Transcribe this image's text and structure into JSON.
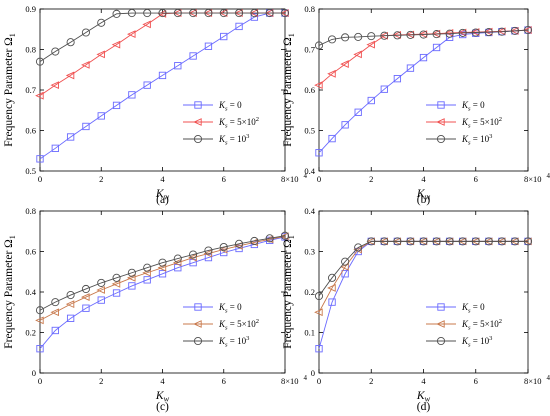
{
  "colors": {
    "blue": "#6a6aff",
    "red": "#f05050",
    "gray": "#505050",
    "orange": "#c8784b"
  },
  "chart_data": [
    {
      "type": "line",
      "caption": "(a)",
      "xlabel": "K_w",
      "ylabel": "Frequency Parameter Ω_1",
      "xlim": [
        0,
        80000
      ],
      "ylim": [
        0.5,
        0.9
      ],
      "xticks": [
        "0",
        "2",
        "4",
        "6",
        "8×10"
      ],
      "xtick_exp": "4",
      "yticks": [
        "0.5",
        "0.6",
        "0.7",
        "0.8",
        "0.9"
      ],
      "legend": "bottom-right",
      "legend_entries": [
        "K_s = 0",
        "K_s = 5×10^2",
        "K_s = 10^3"
      ],
      "markers": [
        "square",
        "triangle-left",
        "circle"
      ],
      "color_keys": [
        "blue",
        "red",
        "gray"
      ],
      "series": [
        {
          "name": "K_s = 0",
          "x": [
            0,
            5000,
            10000,
            15000,
            20000,
            25000,
            30000,
            35000,
            40000,
            45000,
            50000,
            55000,
            60000,
            65000,
            70000,
            75000,
            80000
          ],
          "y": [
            0.53,
            0.556,
            0.584,
            0.61,
            0.636,
            0.662,
            0.688,
            0.712,
            0.736,
            0.76,
            0.784,
            0.808,
            0.832,
            0.857,
            0.88,
            0.89,
            0.89
          ]
        },
        {
          "name": "K_s = 5×10^2",
          "x": [
            0,
            5000,
            10000,
            15000,
            20000,
            25000,
            30000,
            35000,
            40000,
            45000,
            50000,
            55000,
            60000,
            65000,
            70000,
            75000,
            80000
          ],
          "y": [
            0.686,
            0.712,
            0.736,
            0.762,
            0.788,
            0.812,
            0.838,
            0.862,
            0.888,
            0.89,
            0.89,
            0.89,
            0.89,
            0.89,
            0.89,
            0.89,
            0.89
          ]
        },
        {
          "name": "K_s = 10^3",
          "x": [
            0,
            5000,
            10000,
            15000,
            20000,
            25000,
            30000,
            35000,
            40000,
            45000,
            50000,
            55000,
            60000,
            65000,
            70000,
            75000,
            80000
          ],
          "y": [
            0.77,
            0.795,
            0.818,
            0.842,
            0.866,
            0.888,
            0.89,
            0.89,
            0.89,
            0.89,
            0.89,
            0.89,
            0.89,
            0.89,
            0.89,
            0.89,
            0.89
          ]
        }
      ]
    },
    {
      "type": "line",
      "caption": "(b)",
      "xlabel": "K_w",
      "ylabel": "Frequency Parameter Ω_1",
      "xlim": [
        0,
        80000
      ],
      "ylim": [
        0.4,
        0.8
      ],
      "xticks": [
        "0",
        "2",
        "4",
        "6",
        "8×10"
      ],
      "xtick_exp": "4",
      "yticks": [
        "0.4",
        "0.5",
        "0.6",
        "0.7",
        "0.8"
      ],
      "legend": "bottom-right",
      "legend_entries": [
        "K_s = 0",
        "K_s = 5×10^2",
        "K_s = 10^3"
      ],
      "markers": [
        "square",
        "triangle-left",
        "circle"
      ],
      "color_keys": [
        "blue",
        "red",
        "gray"
      ],
      "series": [
        {
          "name": "K_s = 0",
          "x": [
            0,
            5000,
            10000,
            15000,
            20000,
            25000,
            30000,
            35000,
            40000,
            45000,
            50000,
            55000,
            60000,
            65000,
            70000,
            75000,
            80000
          ],
          "y": [
            0.445,
            0.48,
            0.514,
            0.545,
            0.574,
            0.602,
            0.628,
            0.654,
            0.68,
            0.705,
            0.73,
            0.737,
            0.74,
            0.742,
            0.744,
            0.746,
            0.748
          ]
        },
        {
          "name": "K_s = 5×10^2",
          "x": [
            0,
            5000,
            10000,
            15000,
            20000,
            25000,
            30000,
            35000,
            40000,
            45000,
            50000,
            55000,
            60000,
            65000,
            70000,
            75000,
            80000
          ],
          "y": [
            0.612,
            0.64,
            0.664,
            0.688,
            0.712,
            0.734,
            0.736,
            0.737,
            0.738,
            0.739,
            0.741,
            0.742,
            0.743,
            0.744,
            0.745,
            0.746,
            0.748
          ]
        },
        {
          "name": "K_s = 10^3",
          "x": [
            0,
            5000,
            10000,
            15000,
            20000,
            25000,
            30000,
            35000,
            40000,
            45000,
            50000,
            55000,
            60000,
            65000,
            70000,
            75000,
            80000
          ],
          "y": [
            0.71,
            0.725,
            0.73,
            0.731,
            0.733,
            0.734,
            0.735,
            0.736,
            0.737,
            0.738,
            0.739,
            0.741,
            0.742,
            0.743,
            0.744,
            0.746,
            0.748
          ]
        }
      ]
    },
    {
      "type": "line",
      "caption": "(c)",
      "xlabel": "K_w",
      "ylabel": "Frequency Parameter Ω_1",
      "xlim": [
        0,
        80000
      ],
      "ylim": [
        0,
        0.8
      ],
      "xticks": [
        "0",
        "2",
        "4",
        "6",
        "8×10"
      ],
      "xtick_exp": "4",
      "yticks": [
        "0",
        "0.2",
        "0.4",
        "0.6",
        "0.8"
      ],
      "legend": "bottom-right",
      "legend_entries": [
        "K_s = 0",
        "K_s = 5×10^2",
        "K_s = 10^3"
      ],
      "markers": [
        "square",
        "triangle-left",
        "circle"
      ],
      "color_keys": [
        "blue",
        "orange",
        "gray"
      ],
      "series": [
        {
          "name": "K_s = 0",
          "x": [
            0,
            5000,
            10000,
            15000,
            20000,
            25000,
            30000,
            35000,
            40000,
            45000,
            50000,
            55000,
            60000,
            65000,
            70000,
            75000,
            80000
          ],
          "y": [
            0.12,
            0.21,
            0.27,
            0.32,
            0.36,
            0.395,
            0.43,
            0.46,
            0.49,
            0.52,
            0.545,
            0.57,
            0.595,
            0.615,
            0.635,
            0.655,
            0.672
          ]
        },
        {
          "name": "K_s = 5×10^2",
          "x": [
            0,
            5000,
            10000,
            15000,
            20000,
            25000,
            30000,
            35000,
            40000,
            45000,
            50000,
            55000,
            60000,
            65000,
            70000,
            75000,
            80000
          ],
          "y": [
            0.26,
            0.3,
            0.34,
            0.375,
            0.41,
            0.44,
            0.47,
            0.495,
            0.52,
            0.545,
            0.57,
            0.59,
            0.61,
            0.628,
            0.645,
            0.66,
            0.675
          ]
        },
        {
          "name": "K_s = 10^3",
          "x": [
            0,
            5000,
            10000,
            15000,
            20000,
            25000,
            30000,
            35000,
            40000,
            45000,
            50000,
            55000,
            60000,
            65000,
            70000,
            75000,
            80000
          ],
          "y": [
            0.31,
            0.35,
            0.385,
            0.415,
            0.445,
            0.47,
            0.495,
            0.52,
            0.545,
            0.565,
            0.585,
            0.605,
            0.622,
            0.638,
            0.652,
            0.665,
            0.678
          ]
        }
      ]
    },
    {
      "type": "line",
      "caption": "(d)",
      "xlabel": "K_w",
      "ylabel": "Frequency Parameter Ω_1",
      "xlim": [
        0,
        80000
      ],
      "ylim": [
        0,
        0.4
      ],
      "xticks": [
        "0",
        "2",
        "4",
        "6",
        "8×10"
      ],
      "xtick_exp": "4",
      "yticks": [
        "0",
        "0.1",
        "0.2",
        "0.3",
        "0.4"
      ],
      "legend": "bottom-right",
      "legend_entries": [
        "K_s = 0",
        "K_s = 5×10^2",
        "K_s = 10^3"
      ],
      "markers": [
        "square",
        "triangle-left",
        "circle"
      ],
      "color_keys": [
        "blue",
        "orange",
        "gray"
      ],
      "series": [
        {
          "name": "K_s = 0",
          "x": [
            0,
            5000,
            10000,
            15000,
            20000,
            25000,
            30000,
            35000,
            40000,
            45000,
            50000,
            55000,
            60000,
            65000,
            70000,
            75000,
            80000
          ],
          "y": [
            0.06,
            0.175,
            0.245,
            0.3,
            0.325,
            0.325,
            0.325,
            0.325,
            0.325,
            0.325,
            0.325,
            0.325,
            0.325,
            0.325,
            0.325,
            0.325,
            0.325
          ]
        },
        {
          "name": "K_s = 5×10^2",
          "x": [
            0,
            5000,
            10000,
            15000,
            20000,
            25000,
            30000,
            35000,
            40000,
            45000,
            50000,
            55000,
            60000,
            65000,
            70000,
            75000,
            80000
          ],
          "y": [
            0.15,
            0.21,
            0.262,
            0.305,
            0.325,
            0.325,
            0.325,
            0.325,
            0.325,
            0.325,
            0.325,
            0.325,
            0.325,
            0.325,
            0.325,
            0.325,
            0.325
          ]
        },
        {
          "name": "K_s = 10^3",
          "x": [
            0,
            5000,
            10000,
            15000,
            20000,
            25000,
            30000,
            35000,
            40000,
            45000,
            50000,
            55000,
            60000,
            65000,
            70000,
            75000,
            80000
          ],
          "y": [
            0.19,
            0.235,
            0.275,
            0.31,
            0.325,
            0.325,
            0.325,
            0.325,
            0.325,
            0.325,
            0.325,
            0.325,
            0.325,
            0.325,
            0.325,
            0.325,
            0.325
          ]
        }
      ]
    }
  ]
}
